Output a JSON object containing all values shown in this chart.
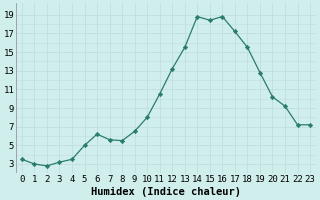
{
  "x": [
    0,
    1,
    2,
    3,
    4,
    5,
    6,
    7,
    8,
    9,
    10,
    11,
    12,
    13,
    14,
    15,
    16,
    17,
    18,
    19,
    20,
    21,
    22,
    23
  ],
  "y": [
    3.5,
    3.0,
    2.8,
    3.2,
    3.5,
    5.0,
    6.2,
    5.6,
    5.5,
    6.5,
    8.0,
    10.5,
    13.2,
    15.5,
    18.8,
    18.4,
    18.8,
    17.2,
    15.5,
    12.8,
    10.2,
    9.2,
    7.2,
    7.2
  ],
  "xlabel": "Humidex (Indice chaleur)",
  "xlim": [
    -0.5,
    23.5
  ],
  "ylim": [
    2,
    20.2
  ],
  "yticks": [
    3,
    5,
    7,
    9,
    11,
    13,
    15,
    17,
    19
  ],
  "xtick_labels": [
    "0",
    "1",
    "2",
    "3",
    "4",
    "5",
    "6",
    "7",
    "8",
    "9",
    "10",
    "11",
    "12",
    "13",
    "14",
    "15",
    "16",
    "17",
    "18",
    "19",
    "20",
    "21",
    "22",
    "23"
  ],
  "line_color": "#2a7d6e",
  "marker": "D",
  "marker_size": 2.2,
  "bg_color": "#d0eeec",
  "grid_color": "#c0dedd",
  "xlabel_fontsize": 7.5,
  "tick_fontsize": 6.5,
  "linewidth": 0.9
}
